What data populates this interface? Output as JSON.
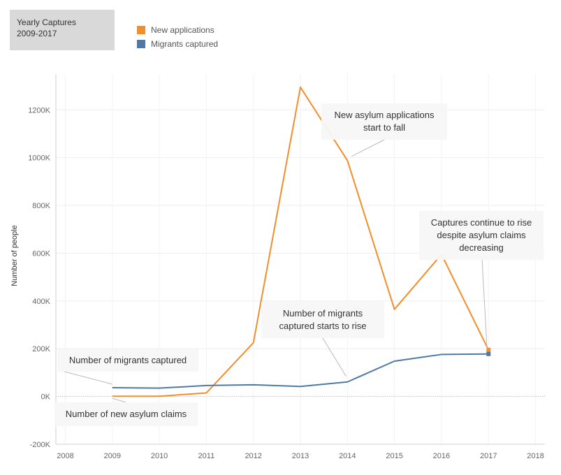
{
  "header": {
    "title_line1": "Yearly Captures",
    "title_line2": "2009-2017"
  },
  "legend": {
    "items": [
      {
        "label": "New applications",
        "color": "#f28e2b"
      },
      {
        "label": "Migrants captured",
        "color": "#4e79a7"
      }
    ]
  },
  "chart_data": {
    "type": "line",
    "ylabel": "Number of people",
    "xlabel": "",
    "ylim": [
      -200000,
      1350000
    ],
    "xlim": [
      2007.8,
      2018.2
    ],
    "grid": true,
    "legend_position": "top-left",
    "x_ticks": [
      2008,
      2009,
      2010,
      2011,
      2012,
      2013,
      2014,
      2015,
      2016,
      2017,
      2018
    ],
    "y_ticks": [
      -200000,
      0,
      200000,
      400000,
      600000,
      800000,
      1000000,
      1200000
    ],
    "y_tick_labels": [
      "-200K",
      "0K",
      "200K",
      "400K",
      "600K",
      "800K",
      "1000K",
      "1200K"
    ],
    "series": [
      {
        "name": "New applications",
        "color": "#f28e2b",
        "x": [
          2009,
          2010,
          2011,
          2012,
          2013,
          2014,
          2015,
          2016,
          2017
        ],
        "values": [
          1000,
          1000,
          15000,
          225000,
          1295000,
          988000,
          365000,
          595000,
          195000
        ]
      },
      {
        "name": "Migrants captured",
        "color": "#4e79a7",
        "x": [
          2009,
          2010,
          2011,
          2012,
          2013,
          2014,
          2015,
          2016,
          2017
        ],
        "values": [
          37000,
          35000,
          46000,
          49000,
          42000,
          61000,
          148000,
          176000,
          178000
        ]
      }
    ],
    "annotations": [
      {
        "lines": [
          "Number of migrants captured"
        ],
        "target_series": 1,
        "target_index": 0
      },
      {
        "lines": [
          "Number of new asylum claims"
        ],
        "target_series": 0,
        "target_index": 0
      },
      {
        "lines": [
          "Number of migrants",
          "captured starts to rise"
        ],
        "target_series": 1,
        "target_index": 5
      },
      {
        "lines": [
          "New asylum applications",
          "start to fall"
        ],
        "target_series": 0,
        "target_index": 5
      },
      {
        "lines": [
          "Captures continue to rise",
          "despite asylum claims",
          "decreasing"
        ],
        "target_series": 1,
        "target_index": 8
      }
    ]
  }
}
